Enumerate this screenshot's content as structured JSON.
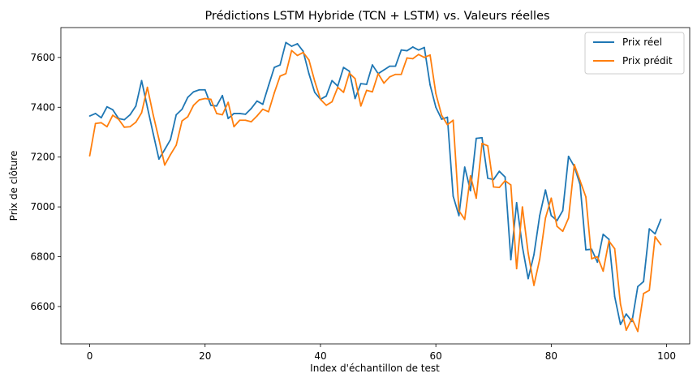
{
  "chart_data": {
    "type": "line",
    "title": "Prédictions LSTM Hybride (TCN + LSTM) vs. Valeurs réelles",
    "xlabel": "Index d'échantillon de test",
    "ylabel": "Prix de clôture",
    "xlim": [
      -5,
      104
    ],
    "ylim": [
      6450,
      7720
    ],
    "xticks": [
      0,
      20,
      40,
      60,
      80,
      100
    ],
    "yticks": [
      6600,
      6800,
      7000,
      7200,
      7400,
      7600
    ],
    "legend_position": "upper right",
    "grid": false,
    "series": [
      {
        "name": "Prix réel",
        "color": "#1f77b4",
        "values": [
          7365,
          7375,
          7358,
          7402,
          7390,
          7355,
          7350,
          7370,
          7405,
          7507,
          7400,
          7295,
          7192,
          7230,
          7270,
          7370,
          7392,
          7440,
          7462,
          7470,
          7470,
          7408,
          7405,
          7447,
          7355,
          7375,
          7375,
          7372,
          7395,
          7425,
          7412,
          7487,
          7560,
          7570,
          7660,
          7645,
          7655,
          7625,
          7535,
          7460,
          7432,
          7445,
          7507,
          7485,
          7560,
          7545,
          7435,
          7495,
          7492,
          7570,
          7535,
          7550,
          7565,
          7565,
          7630,
          7627,
          7642,
          7630,
          7640,
          7490,
          7400,
          7352,
          7360,
          7043,
          6965,
          7160,
          7065,
          7275,
          7278,
          7115,
          7110,
          7143,
          7120,
          6788,
          7017,
          6840,
          6712,
          6808,
          6965,
          7068,
          6965,
          6945,
          6985,
          7203,
          7162,
          7090,
          6828,
          6830,
          6778,
          6890,
          6870,
          6640,
          6528,
          6570,
          6540,
          6680,
          6700,
          6912,
          6892,
          6950
        ]
      },
      {
        "name": "Prix prédit",
        "color": "#ff7f0e",
        "values": [
          7205,
          7335,
          7338,
          7322,
          7368,
          7352,
          7320,
          7322,
          7340,
          7378,
          7480,
          7370,
          7272,
          7168,
          7210,
          7248,
          7345,
          7362,
          7408,
          7430,
          7435,
          7432,
          7375,
          7370,
          7420,
          7322,
          7348,
          7348,
          7342,
          7365,
          7392,
          7382,
          7458,
          7525,
          7535,
          7628,
          7608,
          7620,
          7590,
          7505,
          7432,
          7408,
          7422,
          7480,
          7460,
          7537,
          7515,
          7405,
          7468,
          7462,
          7535,
          7497,
          7522,
          7532,
          7532,
          7598,
          7595,
          7612,
          7600,
          7610,
          7455,
          7368,
          7330,
          7348,
          6985,
          6950,
          7125,
          7035,
          7255,
          7245,
          7080,
          7078,
          7105,
          7088,
          6752,
          7000,
          6815,
          6685,
          6790,
          6955,
          7035,
          6922,
          6902,
          6955,
          7170,
          7105,
          7040,
          6792,
          6800,
          6742,
          6863,
          6832,
          6610,
          6505,
          6552,
          6500,
          6652,
          6665,
          6880,
          6848
        ]
      }
    ]
  }
}
